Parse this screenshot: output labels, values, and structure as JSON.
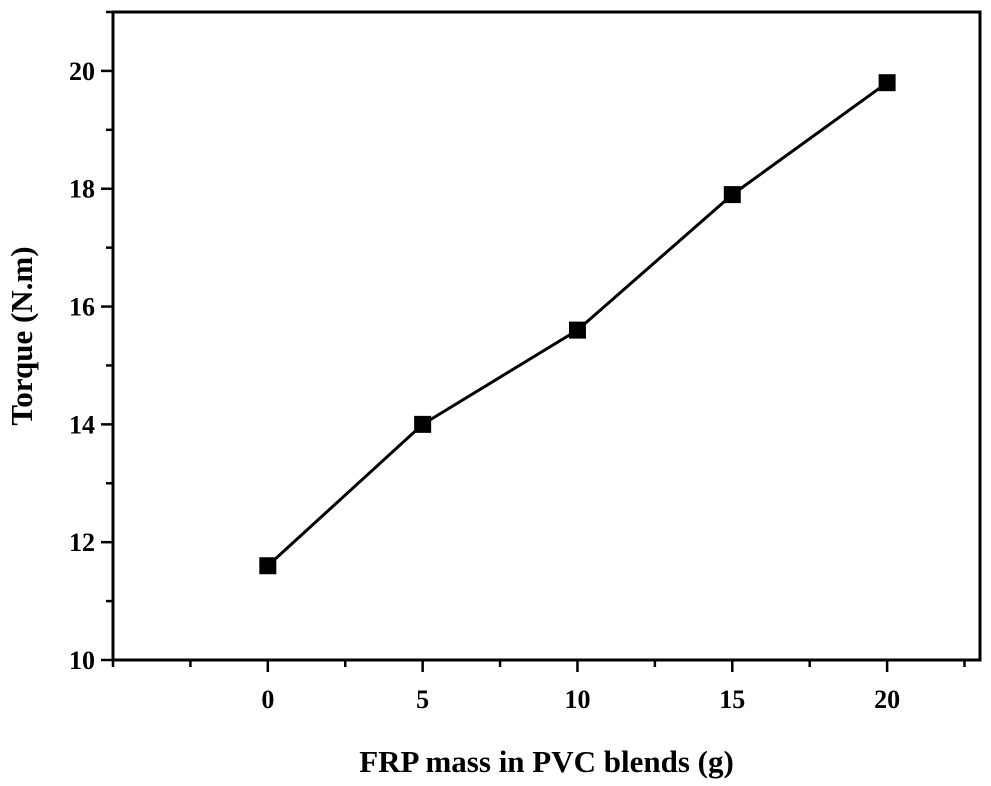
{
  "chart_data": {
    "type": "line",
    "title": "",
    "xlabel": "FRP mass in PVC blends (g)",
    "ylabel": "Torque (N.m)",
    "xlim": [
      -5,
      23
    ],
    "ylim": [
      10,
      21
    ],
    "x_ticks": [
      0,
      5,
      10,
      15,
      20
    ],
    "x_tick_labels": [
      "0",
      "5",
      "10",
      "15",
      "20"
    ],
    "y_ticks": [
      10,
      12,
      14,
      16,
      18,
      20
    ],
    "y_tick_labels": [
      "10",
      "12",
      "14",
      "16",
      "18",
      "20"
    ],
    "grid": false,
    "marker": "square",
    "series": [
      {
        "name": "Torque",
        "color": "#000000",
        "x": [
          0,
          5,
          10,
          15,
          20
        ],
        "y": [
          11.6,
          14.0,
          15.6,
          17.9,
          19.8
        ]
      }
    ]
  }
}
